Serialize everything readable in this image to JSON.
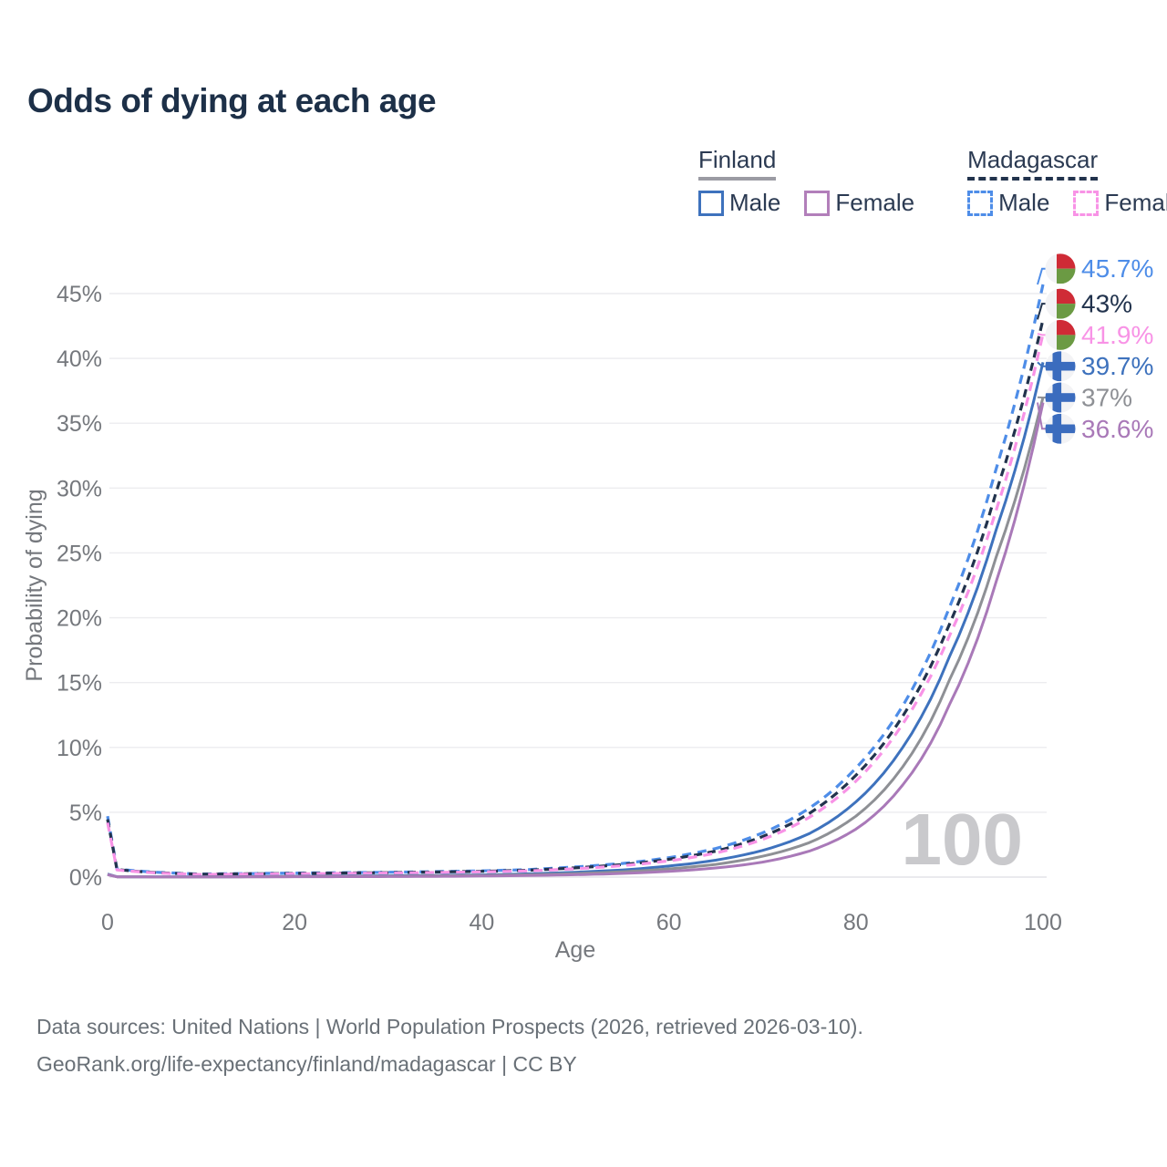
{
  "title": "Odds of dying at each age",
  "legend": {
    "groups": [
      {
        "name": "Finland",
        "underline_style": "solid",
        "underline_color": "#9b9ba3",
        "items": [
          {
            "label": "Male",
            "color": "#3e72bd",
            "dashed": false
          },
          {
            "label": "Female",
            "color": "#b27fba",
            "dashed": false
          }
        ]
      },
      {
        "name": "Madagascar",
        "underline_style": "dashed",
        "underline_color": "#22334d",
        "items": [
          {
            "label": "Male",
            "color": "#4e8de8",
            "dashed": true
          },
          {
            "label": "Female",
            "color": "#f893e6",
            "dashed": true
          }
        ]
      }
    ]
  },
  "watermark": "100",
  "footer": {
    "line1": "Data sources: United Nations | World Population Prospects (2026, retrieved 2026-03-10).",
    "line2": "GeoRank.org/life-expectancy/finland/madagascar | CC BY"
  },
  "chart_data": {
    "type": "line",
    "title": "Odds of dying at each age",
    "xlabel": "Age",
    "ylabel": "Probability of dying",
    "xlim": [
      0,
      100
    ],
    "ylim": [
      0,
      47
    ],
    "x_ticks": [
      0,
      20,
      40,
      60,
      80,
      100
    ],
    "y_ticks": [
      0,
      5,
      10,
      15,
      20,
      25,
      30,
      35,
      40,
      45
    ],
    "y_tick_suffix": "%",
    "grid": "horizontal",
    "legend_position": "top-right",
    "series": [
      {
        "name": "Madagascar Male",
        "country": "Madagascar",
        "sex": "Male",
        "color": "#4e8de8",
        "dash": "10 7",
        "width": 3.2,
        "end_label": "45.7%",
        "end_value": 45.7,
        "flag": "madagascar",
        "points": [
          [
            0,
            4.7
          ],
          [
            1,
            0.62
          ],
          [
            5,
            0.38
          ],
          [
            10,
            0.24
          ],
          [
            15,
            0.27
          ],
          [
            20,
            0.31
          ],
          [
            25,
            0.34
          ],
          [
            30,
            0.37
          ],
          [
            35,
            0.42
          ],
          [
            40,
            0.48
          ],
          [
            45,
            0.58
          ],
          [
            50,
            0.78
          ],
          [
            55,
            1.05
          ],
          [
            60,
            1.5
          ],
          [
            65,
            2.2
          ],
          [
            70,
            3.4
          ],
          [
            75,
            5.3
          ],
          [
            80,
            8.4
          ],
          [
            85,
            13.2
          ],
          [
            90,
            20.8
          ],
          [
            95,
            31.5
          ],
          [
            100,
            45.7
          ]
        ]
      },
      {
        "name": "Madagascar Both sexes",
        "country": "Madagascar",
        "sex": "Both",
        "color": "#22334d",
        "dash": "9 6",
        "width": 3.2,
        "end_label": "43%",
        "end_value": 43,
        "flag": "madagascar",
        "points": [
          [
            0,
            4.45
          ],
          [
            1,
            0.58
          ],
          [
            5,
            0.35
          ],
          [
            10,
            0.22
          ],
          [
            15,
            0.25
          ],
          [
            20,
            0.28
          ],
          [
            25,
            0.31
          ],
          [
            30,
            0.34
          ],
          [
            35,
            0.39
          ],
          [
            40,
            0.44
          ],
          [
            45,
            0.53
          ],
          [
            50,
            0.71
          ],
          [
            55,
            0.96
          ],
          [
            60,
            1.37
          ],
          [
            65,
            2.0
          ],
          [
            70,
            3.12
          ],
          [
            75,
            4.9
          ],
          [
            80,
            7.85
          ],
          [
            85,
            12.4
          ],
          [
            90,
            19.5
          ],
          [
            95,
            29.7
          ],
          [
            100,
            43.0
          ]
        ]
      },
      {
        "name": "Madagascar Female",
        "country": "Madagascar",
        "sex": "Female",
        "color": "#f893e6",
        "dash": "10 7",
        "width": 3.2,
        "end_label": "41.9%",
        "end_value": 41.9,
        "flag": "madagascar",
        "points": [
          [
            0,
            4.2
          ],
          [
            1,
            0.55
          ],
          [
            5,
            0.33
          ],
          [
            10,
            0.2
          ],
          [
            15,
            0.22
          ],
          [
            20,
            0.25
          ],
          [
            25,
            0.28
          ],
          [
            30,
            0.31
          ],
          [
            35,
            0.35
          ],
          [
            40,
            0.4
          ],
          [
            45,
            0.48
          ],
          [
            50,
            0.64
          ],
          [
            55,
            0.88
          ],
          [
            60,
            1.25
          ],
          [
            65,
            1.85
          ],
          [
            70,
            2.9
          ],
          [
            75,
            4.6
          ],
          [
            80,
            7.4
          ],
          [
            85,
            11.8
          ],
          [
            90,
            18.6
          ],
          [
            95,
            28.3
          ],
          [
            100,
            41.9
          ]
        ]
      },
      {
        "name": "Finland Male",
        "country": "Finland",
        "sex": "Male",
        "color": "#3e72bd",
        "dash": null,
        "width": 3,
        "end_label": "39.7%",
        "end_value": 39.7,
        "flag": "finland",
        "points": [
          [
            0,
            0.23
          ],
          [
            1,
            0.025
          ],
          [
            5,
            0.012
          ],
          [
            10,
            0.012
          ],
          [
            15,
            0.035
          ],
          [
            20,
            0.06
          ],
          [
            25,
            0.08
          ],
          [
            30,
            0.1
          ],
          [
            35,
            0.13
          ],
          [
            40,
            0.17
          ],
          [
            45,
            0.25
          ],
          [
            50,
            0.37
          ],
          [
            55,
            0.55
          ],
          [
            60,
            0.85
          ],
          [
            65,
            1.3
          ],
          [
            70,
            2.05
          ],
          [
            75,
            3.35
          ],
          [
            80,
            5.8
          ],
          [
            85,
            10.0
          ],
          [
            90,
            17.0
          ],
          [
            95,
            26.8
          ],
          [
            100,
            39.7
          ]
        ]
      },
      {
        "name": "Finland Both sexes",
        "country": "Finland",
        "sex": "Both",
        "color": "#8e9095",
        "dash": null,
        "width": 3,
        "end_label": "37%",
        "end_value": 37,
        "flag": "finland",
        "points": [
          [
            0,
            0.2
          ],
          [
            1,
            0.02
          ],
          [
            5,
            0.01
          ],
          [
            10,
            0.01
          ],
          [
            15,
            0.025
          ],
          [
            20,
            0.04
          ],
          [
            25,
            0.055
          ],
          [
            30,
            0.07
          ],
          [
            35,
            0.095
          ],
          [
            40,
            0.13
          ],
          [
            45,
            0.18
          ],
          [
            50,
            0.27
          ],
          [
            55,
            0.41
          ],
          [
            60,
            0.63
          ],
          [
            65,
            0.98
          ],
          [
            70,
            1.6
          ],
          [
            75,
            2.65
          ],
          [
            80,
            4.7
          ],
          [
            85,
            8.5
          ],
          [
            90,
            15.2
          ],
          [
            95,
            24.7
          ],
          [
            100,
            37.0
          ]
        ]
      },
      {
        "name": "Finland Female",
        "country": "Finland",
        "sex": "Female",
        "color": "#a979b8",
        "dash": null,
        "width": 3,
        "end_label": "36.6%",
        "end_value": 36.6,
        "flag": "finland",
        "points": [
          [
            0,
            0.18
          ],
          [
            1,
            0.018
          ],
          [
            5,
            0.009
          ],
          [
            10,
            0.009
          ],
          [
            15,
            0.018
          ],
          [
            20,
            0.025
          ],
          [
            25,
            0.032
          ],
          [
            30,
            0.04
          ],
          [
            35,
            0.055
          ],
          [
            40,
            0.085
          ],
          [
            45,
            0.12
          ],
          [
            50,
            0.18
          ],
          [
            55,
            0.28
          ],
          [
            60,
            0.44
          ],
          [
            65,
            0.7
          ],
          [
            70,
            1.15
          ],
          [
            75,
            2.0
          ],
          [
            80,
            3.7
          ],
          [
            85,
            7.1
          ],
          [
            90,
            13.3
          ],
          [
            95,
            22.8
          ],
          [
            100,
            36.6
          ]
        ]
      }
    ],
    "flag_colors": {
      "madagascar_red": "#cf2b36",
      "madagascar_green": "#6b9a43",
      "finland_blue": "#3b6cbe",
      "flag_white": "#f3f3f5"
    }
  }
}
